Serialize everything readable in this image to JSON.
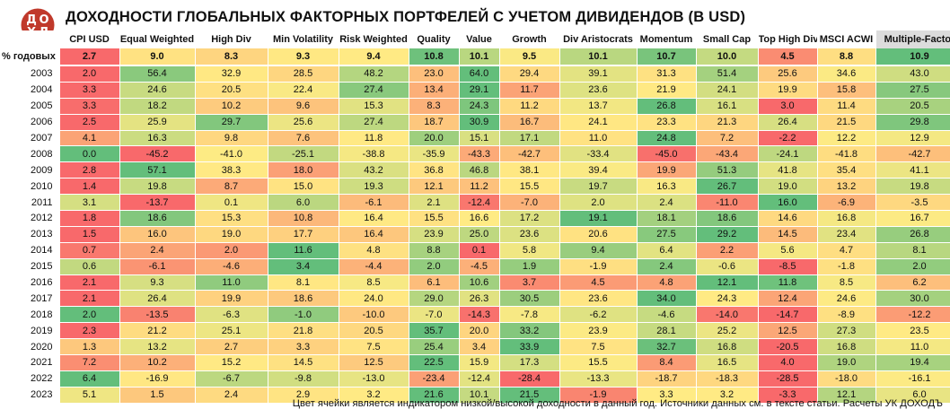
{
  "title": "ДОХОДНОСТИ ГЛОБАЛЬНЫХ ФАКТОРНЫХ ПОРТФЕЛЕЙ С УЧЕТОМ ДИВИДЕНДОВ (В USD)",
  "logo": {
    "letters": [
      "Д",
      "О",
      "Х",
      "Д"
    ],
    "color": "#c0392b",
    "icon": "dohod-logo-icon"
  },
  "footnote": "Цвет ячейки является индикатором низкой/высокой доходности в данный год. Источники данных см. в тексте статьи. Расчеты УК ДОХОДЪ",
  "colors": {
    "low": "#f8696b",
    "mid": "#ffeb84",
    "high": "#63be7b",
    "highlight_header": "#dcdcdc"
  },
  "chart_data": {
    "type": "heatmap",
    "avg_label": "% годовых",
    "columns": [
      "CPI USD",
      "Equal Weighted",
      "High Div",
      "Min Volatility",
      "Risk Weighted",
      "Quality",
      "Value",
      "Growth",
      "Div Aristocrats",
      "Momentum",
      "Small Cap",
      "Top High Div",
      "MSCI ACWI",
      "Multiple-Factor"
    ],
    "highlighted_column": "Multiple-Factor",
    "averages": [
      "2.7",
      "9.0",
      "8.3",
      "9.3",
      "9.4",
      "10.8",
      "10.1",
      "9.5",
      "10.1",
      "10.7",
      "10.0",
      "4.5",
      "8.8",
      "10.9"
    ],
    "rows": [
      {
        "year": "2003",
        "values": [
          "2.0",
          "56.4",
          "32.9",
          "28.5",
          "48.2",
          "23.0",
          "64.0",
          "29.4",
          "39.1",
          "31.3",
          "51.4",
          "25.6",
          "34.6",
          "43.0"
        ]
      },
      {
        "year": "2004",
        "values": [
          "3.3",
          "24.6",
          "20.5",
          "22.4",
          "27.4",
          "13.4",
          "29.1",
          "11.7",
          "23.6",
          "21.9",
          "24.1",
          "19.9",
          "15.8",
          "27.5"
        ]
      },
      {
        "year": "2005",
        "values": [
          "3.3",
          "18.2",
          "10.2",
          "9.6",
          "15.3",
          "8.3",
          "24.3",
          "11.2",
          "13.7",
          "26.8",
          "16.1",
          "3.0",
          "11.4",
          "20.5"
        ]
      },
      {
        "year": "2006",
        "values": [
          "2.5",
          "25.9",
          "29.7",
          "25.6",
          "27.4",
          "18.7",
          "30.9",
          "16.7",
          "24.1",
          "23.3",
          "21.3",
          "26.4",
          "21.5",
          "29.8"
        ]
      },
      {
        "year": "2007",
        "values": [
          "4.1",
          "16.3",
          "9.8",
          "7.6",
          "11.8",
          "20.0",
          "15.1",
          "17.1",
          "11.0",
          "24.8",
          "7.2",
          "-2.2",
          "12.2",
          "12.9"
        ]
      },
      {
        "year": "2008",
        "values": [
          "0.0",
          "-45.2",
          "-41.0",
          "-25.1",
          "-38.8",
          "-35.9",
          "-43.3",
          "-42.7",
          "-33.4",
          "-45.0",
          "-43.4",
          "-24.1",
          "-41.8",
          "-42.7"
        ]
      },
      {
        "year": "2009",
        "values": [
          "2.8",
          "57.1",
          "38.3",
          "18.0",
          "43.2",
          "36.8",
          "46.8",
          "38.1",
          "39.4",
          "19.9",
          "51.3",
          "41.8",
          "35.4",
          "41.1"
        ]
      },
      {
        "year": "2010",
        "values": [
          "1.4",
          "19.8",
          "8.7",
          "15.0",
          "19.3",
          "12.1",
          "11.2",
          "15.5",
          "19.7",
          "16.3",
          "26.7",
          "19.0",
          "13.2",
          "19.8"
        ]
      },
      {
        "year": "2011",
        "values": [
          "3.1",
          "-13.7",
          "0.1",
          "6.0",
          "-6.1",
          "2.1",
          "-12.4",
          "-7.0",
          "2.0",
          "2.4",
          "-11.0",
          "16.0",
          "-6.9",
          "-3.5"
        ]
      },
      {
        "year": "2012",
        "values": [
          "1.8",
          "18.6",
          "15.3",
          "10.8",
          "16.4",
          "15.5",
          "16.6",
          "17.2",
          "19.1",
          "18.1",
          "18.6",
          "14.6",
          "16.8",
          "16.7"
        ]
      },
      {
        "year": "2013",
        "values": [
          "1.5",
          "16.0",
          "19.0",
          "17.7",
          "16.4",
          "23.9",
          "25.0",
          "23.6",
          "20.6",
          "27.5",
          "29.2",
          "14.5",
          "23.4",
          "26.8"
        ]
      },
      {
        "year": "2014",
        "values": [
          "0.7",
          "2.4",
          "2.0",
          "11.6",
          "4.8",
          "8.8",
          "0.1",
          "5.8",
          "9.4",
          "6.4",
          "2.2",
          "5.6",
          "4.7",
          "8.1"
        ]
      },
      {
        "year": "2015",
        "values": [
          "0.6",
          "-6.1",
          "-4.6",
          "3.4",
          "-4.4",
          "2.0",
          "-4.5",
          "1.9",
          "-1.9",
          "2.4",
          "-0.6",
          "-8.5",
          "-1.8",
          "2.0"
        ]
      },
      {
        "year": "2016",
        "values": [
          "2.1",
          "9.3",
          "11.0",
          "8.1",
          "8.5",
          "6.1",
          "10.6",
          "3.7",
          "4.5",
          "4.8",
          "12.1",
          "11.8",
          "8.5",
          "6.2"
        ]
      },
      {
        "year": "2017",
        "values": [
          "2.1",
          "26.4",
          "19.9",
          "18.6",
          "24.0",
          "29.0",
          "26.3",
          "30.5",
          "23.6",
          "34.0",
          "24.3",
          "12.4",
          "24.6",
          "30.0"
        ]
      },
      {
        "year": "2018",
        "values": [
          "2.0",
          "-13.5",
          "-6.3",
          "-1.0",
          "-10.0",
          "-7.0",
          "-14.3",
          "-7.8",
          "-6.2",
          "-4.6",
          "-14.0",
          "-14.7",
          "-8.9",
          "-12.2"
        ]
      },
      {
        "year": "2019",
        "values": [
          "2.3",
          "21.2",
          "25.1",
          "21.8",
          "20.5",
          "35.7",
          "20.0",
          "33.2",
          "23.9",
          "28.1",
          "25.2",
          "12.5",
          "27.3",
          "23.5"
        ]
      },
      {
        "year": "2020",
        "values": [
          "1.3",
          "13.2",
          "2.7",
          "3.3",
          "7.5",
          "25.4",
          "3.4",
          "33.9",
          "7.5",
          "32.7",
          "16.8",
          "-20.5",
          "16.8",
          "11.0"
        ]
      },
      {
        "year": "2021",
        "values": [
          "7.2",
          "10.2",
          "15.2",
          "14.5",
          "12.5",
          "22.5",
          "15.9",
          "17.3",
          "15.5",
          "8.4",
          "16.5",
          "4.0",
          "19.0",
          "19.4"
        ]
      },
      {
        "year": "2022",
        "values": [
          "6.4",
          "-16.9",
          "-6.7",
          "-9.8",
          "-13.0",
          "-23.4",
          "-12.4",
          "-28.4",
          "-13.3",
          "-18.7",
          "-18.3",
          "-28.5",
          "-18.0",
          "-16.1"
        ]
      },
      {
        "year": "2023",
        "values": [
          "5.1",
          "1.5",
          "2.4",
          "2.9",
          "3.2",
          "21.6",
          "10.1",
          "21.5",
          "-1.9",
          "3.3",
          "3.2",
          "-3.3",
          "12.1",
          "6.0"
        ]
      }
    ]
  }
}
